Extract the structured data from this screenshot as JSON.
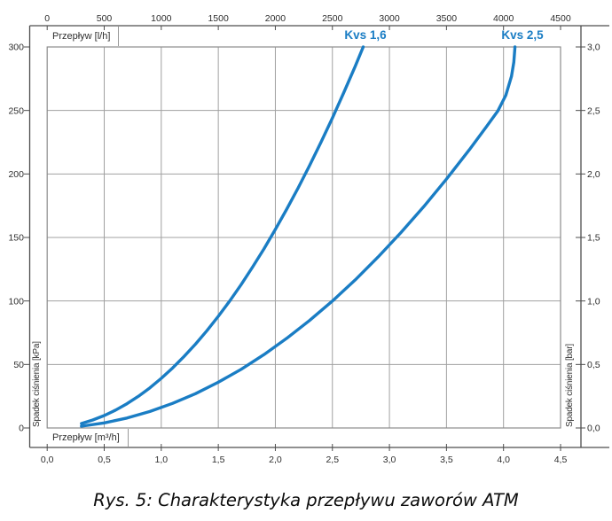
{
  "caption": "Rys. 5: Charakterystyka przepływu zaworów ATM",
  "chart_data": {
    "type": "line",
    "title": "",
    "top_axis": {
      "label": "Przepływ [l/h]",
      "ticks": [
        "0",
        "500",
        "1000",
        "1500",
        "2000",
        "2500",
        "3000",
        "3500",
        "4000",
        "4500"
      ]
    },
    "bottom_axis": {
      "label": "Przepływ [m³/h]",
      "ticks": [
        "0,0",
        "0,5",
        "1,0",
        "1,5",
        "2,0",
        "2,5",
        "3,0",
        "3,5",
        "4,0",
        "4,5"
      ]
    },
    "left_axis": {
      "label": "Spadek ciśnienia [kPa]",
      "ticks": [
        "0",
        "50",
        "100",
        "150",
        "200",
        "250",
        "300"
      ]
    },
    "right_axis": {
      "label": "Spadek ciśnienia [bar]",
      "ticks": [
        "0,0",
        "0,5",
        "1,0",
        "1,5",
        "2,0",
        "2,5",
        "3,0"
      ]
    },
    "x_range_m3h": [
      0,
      4.5
    ],
    "y_range_kpa": [
      0,
      300
    ],
    "grid": "on",
    "accent_color": "#1a7dc4",
    "grid_color": "#a0a0a0",
    "frame_color": "#8c8c8c",
    "axis_color": "#4d4d4d",
    "series": [
      {
        "name": "Kvs 1,6",
        "kvs": 1.6,
        "points": [
          [
            0.3,
            3.5
          ],
          [
            0.4,
            6.3
          ],
          [
            0.5,
            9.8
          ],
          [
            0.6,
            14.1
          ],
          [
            0.7,
            19.1
          ],
          [
            0.8,
            25.0
          ],
          [
            0.9,
            31.6
          ],
          [
            1.0,
            39.1
          ],
          [
            1.1,
            47.3
          ],
          [
            1.2,
            56.3
          ],
          [
            1.3,
            66.0
          ],
          [
            1.4,
            76.6
          ],
          [
            1.5,
            87.9
          ],
          [
            1.6,
            100.0
          ],
          [
            1.7,
            112.9
          ],
          [
            1.8,
            126.6
          ],
          [
            1.9,
            141.0
          ],
          [
            2.0,
            156.3
          ],
          [
            2.1,
            172.3
          ],
          [
            2.2,
            189.1
          ],
          [
            2.3,
            206.6
          ],
          [
            2.4,
            225.0
          ],
          [
            2.5,
            244.1
          ],
          [
            2.6,
            264.1
          ],
          [
            2.7,
            284.8
          ],
          [
            2.77,
            300.0
          ]
        ]
      },
      {
        "name": "Kvs 2,5",
        "kvs": 2.5,
        "points": [
          [
            0.3,
            1.4
          ],
          [
            0.5,
            4.0
          ],
          [
            0.7,
            7.8
          ],
          [
            0.9,
            13.0
          ],
          [
            1.1,
            19.4
          ],
          [
            1.3,
            27.0
          ],
          [
            1.5,
            36.0
          ],
          [
            1.7,
            46.2
          ],
          [
            1.9,
            57.8
          ],
          [
            2.1,
            70.6
          ],
          [
            2.3,
            84.6
          ],
          [
            2.5,
            100.0
          ],
          [
            2.7,
            116.6
          ],
          [
            2.9,
            134.6
          ],
          [
            3.1,
            153.8
          ],
          [
            3.3,
            174.2
          ],
          [
            3.5,
            196.0
          ],
          [
            3.7,
            219.0
          ],
          [
            3.85,
            237.2
          ],
          [
            3.95,
            249.6
          ],
          [
            4.02,
            262.0
          ],
          [
            4.07,
            277.0
          ],
          [
            4.09,
            288.0
          ],
          [
            4.1,
            300.0
          ]
        ]
      }
    ]
  }
}
